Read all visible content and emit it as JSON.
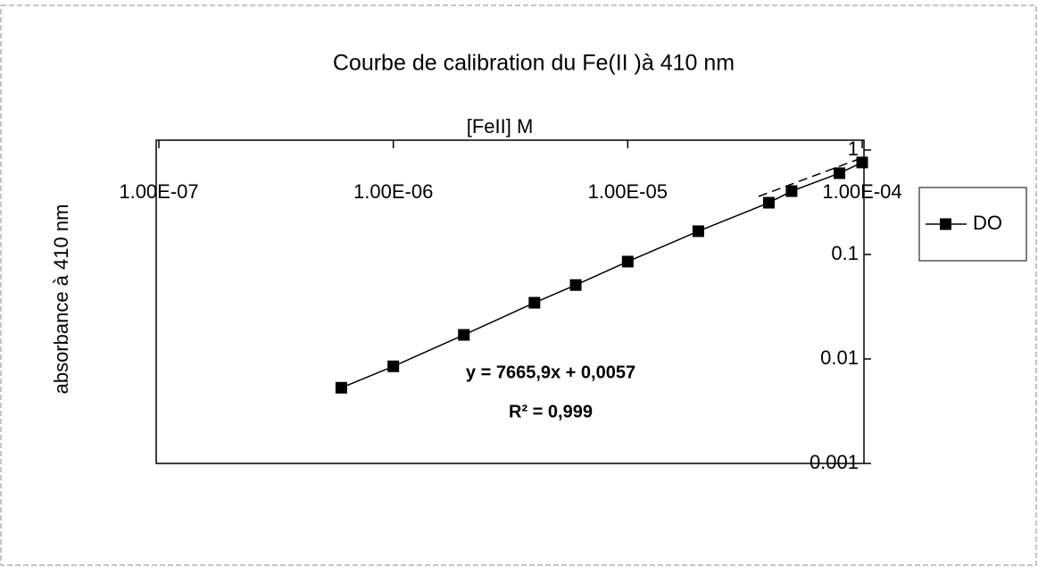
{
  "chart_data": {
    "type": "line",
    "title": "Courbe de calibration du Fe(II )à 410 nm",
    "x_label": "[FeII] M",
    "y_label": "absorbance à 410 nm",
    "annotations": [
      "y = 7665,9x + 0,0057",
      "R² = 0,999"
    ],
    "x": [
      6e-07,
      1e-06,
      2e-06,
      4e-06,
      6e-06,
      1e-05,
      2e-05,
      4e-05,
      5e-05,
      8e-05,
      0.0001
    ],
    "series": [
      {
        "name": "DO",
        "color": "#000000",
        "values": [
          0.0053,
          0.0085,
          0.017,
          0.0345,
          0.051,
          0.0855,
          0.167,
          0.313,
          0.404,
          0.6,
          0.76
        ]
      }
    ],
    "xlim": [
      1e-07,
      0.0001
    ],
    "ylim": [
      0.001,
      1
    ],
    "xscale": "log",
    "yscale": "log",
    "xticks": [
      {
        "value": 1e-07,
        "label": "1.00E-07"
      },
      {
        "value": 1e-06,
        "label": "1.00E-06"
      },
      {
        "value": 1e-05,
        "label": "1.00E-05"
      },
      {
        "value": 0.0001,
        "label": "1.00E-04"
      }
    ],
    "yticks": [
      0.001,
      0.01,
      0.1,
      1
    ],
    "legend": "right"
  }
}
